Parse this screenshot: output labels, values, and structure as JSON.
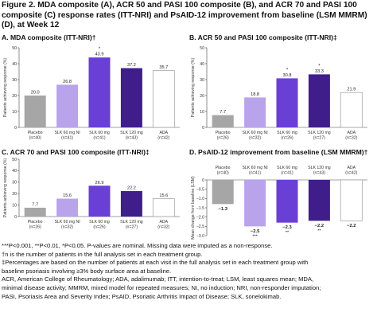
{
  "figure": {
    "title": "Figure 2. MDA composite (A), ACR 50 and PASI 100 composite (B), and ACR 70 and PASI 100 composite (C) response rates (ITT-NRI) and PsAID-12 improvement from baseline (LSM MMRM) (D), at Week 12"
  },
  "colors": {
    "placebo": "#a6a6a6",
    "slk60ni": "#b9a3ea",
    "slk60": "#6a3fd6",
    "slk120": "#3f1e8c",
    "ada": "#ffffff",
    "ada_border": "#9a9a9a"
  },
  "chart_data": [
    {
      "id": "A",
      "type": "bar",
      "title": "A. MDA composite (ITT-NRI)†",
      "ylabel": "Patients achieving response (%)",
      "ylim": [
        0,
        50
      ],
      "yticks": [
        0,
        10,
        20,
        30,
        40,
        50
      ],
      "categories": [
        "Placebo (n=40)",
        "SLK 60 mg NI (n=41)",
        "SLK 60 mg (n=41)",
        "SLK 120 mg (n=43)",
        "ADA (n=42)"
      ],
      "category_lines": [
        [
          "Placebo",
          "(n=40)"
        ],
        [
          "SLK 60 mg NI",
          "(n=41)"
        ],
        [
          "SLK 60 mg",
          "(n=41)"
        ],
        [
          "SLK 120 mg",
          "(n=43)"
        ],
        [
          "ADA",
          "(n=42)"
        ]
      ],
      "values": [
        20.0,
        26.8,
        43.9,
        37.2,
        35.7
      ],
      "value_labels": [
        "20.0",
        "26.8",
        "43.9",
        "37.2",
        "35.7"
      ],
      "significance": [
        "",
        "",
        "*",
        "",
        ""
      ],
      "color_keys": [
        "placebo",
        "slk60ni",
        "slk60",
        "slk120",
        "ada"
      ]
    },
    {
      "id": "B",
      "type": "bar",
      "title": "B. ACR 50 and PASI 100 composite (ITT-NRI)‡",
      "ylabel": "Patients achieving response (%)",
      "ylim": [
        0,
        50
      ],
      "yticks": [
        0,
        10,
        20,
        30,
        40,
        50
      ],
      "categories": [
        "Placebo (n=26)",
        "SLK 60 mg NI (n=32)",
        "SLK 60 mg (n=26)",
        "SLK 120 mg (n=27)",
        "ADA (n=32)"
      ],
      "category_lines": [
        [
          "Placebo",
          "(n=26)"
        ],
        [
          "SLK 60 mg NI",
          "(n=32)"
        ],
        [
          "SLK 60 mg",
          "(n=26)"
        ],
        [
          "SLK 120 mg",
          "(n=27)"
        ],
        [
          "ADA",
          "(n=32)"
        ]
      ],
      "values": [
        7.7,
        18.8,
        30.8,
        33.3,
        21.9
      ],
      "value_labels": [
        "7.7",
        "18.8",
        "30.8",
        "33.3",
        "21.9"
      ],
      "significance": [
        "",
        "",
        "*",
        "*",
        ""
      ],
      "color_keys": [
        "placebo",
        "slk60ni",
        "slk60",
        "slk120",
        "ada"
      ]
    },
    {
      "id": "C",
      "type": "bar",
      "title": "C. ACR 70 and PASI 100 composite (ITT-NRI)‡",
      "ylabel": "Patients achieving response (%)",
      "ylim": [
        0,
        50
      ],
      "yticks": [
        0,
        10,
        20,
        30,
        40,
        50
      ],
      "categories": [
        "Placebo (n=26)",
        "SLK 60 mg NI (n=32)",
        "SLK 60 mg (n=26)",
        "SLK 120 mg (n=27)",
        "ADA (n=32)"
      ],
      "category_lines": [
        [
          "Placebo",
          "(n=26)"
        ],
        [
          "SLK 60 mg NI",
          "(n=32)"
        ],
        [
          "SLK 60 mg",
          "(n=26)"
        ],
        [
          "SLK 120 mg",
          "(n=27)"
        ],
        [
          "ADA",
          "(n=32)"
        ]
      ],
      "values": [
        7.7,
        15.6,
        26.9,
        22.2,
        15.6
      ],
      "value_labels": [
        "7.7",
        "15.6",
        "26.9",
        "22.2",
        "15.6"
      ],
      "significance": [
        "",
        "",
        "",
        "",
        ""
      ],
      "color_keys": [
        "placebo",
        "slk60ni",
        "slk60",
        "slk120",
        "ada"
      ]
    },
    {
      "id": "D",
      "type": "bar",
      "title": "D. PsAID-12 improvement from baseline (LSM MMRM)†",
      "ylabel": "Mean change from baseline (LSM)",
      "ylim": [
        -3,
        0
      ],
      "yticks": [
        0,
        -0.5,
        -1.0,
        -1.5,
        -2.0,
        -2.5,
        -3.0
      ],
      "categories": [
        "Placebo (n=40)",
        "SLK 60 mg NI (n=41)",
        "SLK 60 mg (n=41)",
        "SLK 120 mg (n=43)",
        "ADA (n=42)"
      ],
      "category_lines": [
        [
          "Placebo",
          "(n=40)"
        ],
        [
          "SLK 60 mg NI",
          "(n=41)"
        ],
        [
          "SLK 60 mg",
          "(n=41)"
        ],
        [
          "SLK 120 mg",
          "(n=43)"
        ],
        [
          "ADA",
          "(n=42)"
        ]
      ],
      "values": [
        -1.3,
        -2.5,
        -2.3,
        -2.2,
        -2.2
      ],
      "value_labels": [
        "−1.3",
        "−2.5",
        "−2.3",
        "−2.2",
        "−2.2"
      ],
      "significance": [
        "",
        "***",
        "**",
        "**",
        ""
      ],
      "color_keys": [
        "placebo",
        "slk60ni",
        "slk60",
        "slk120",
        "ada"
      ]
    }
  ],
  "footnotes": {
    "line1": "***P<0.001, **P<0.01, *P<0.05. P-values are nominal. Missing data were imputed as a non-response.",
    "line2": "†n is the number of patients in the full analysis set in each treatment group.",
    "line3": "‡Percentages are based on the number of patients at each visit in the full analysis set in each treatment group with",
    "line4": "baseline psoriasis involving ≥3% body surface area at baseline.",
    "line5": "ACR, American College of Rheumatology; ADA, adalimumab; ITT, intention-to-treat; LSM, least squares mean; MDA,",
    "line6": "minimal disease activity; MMRM, mixed model for repeated measures; NI, no induction; NRI, non-responder imputation;",
    "line7": "PASI, Psoriasis Area and Severity Index; PsAID, Psoriatic Arthritis Impact of Disease; SLK, sonelokimab."
  }
}
